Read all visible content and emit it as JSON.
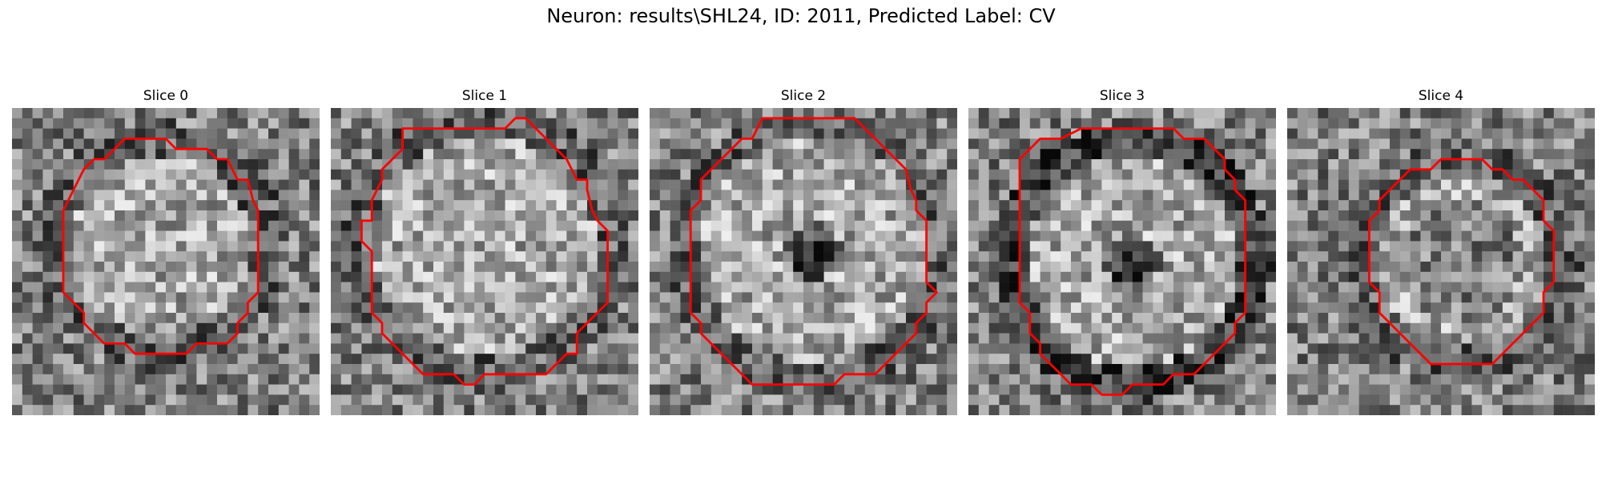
{
  "figure": {
    "title": "Neuron: results\\SHL24, ID: 2011, Predicted Label: CV"
  },
  "colors": {
    "contour": "#ff0000",
    "background": "#ffffff"
  },
  "panels": [
    {
      "title": "Slice 0"
    },
    {
      "title": "Slice 1"
    },
    {
      "title": "Slice 2"
    },
    {
      "title": "Slice 3"
    },
    {
      "title": "Slice 4"
    }
  ]
}
